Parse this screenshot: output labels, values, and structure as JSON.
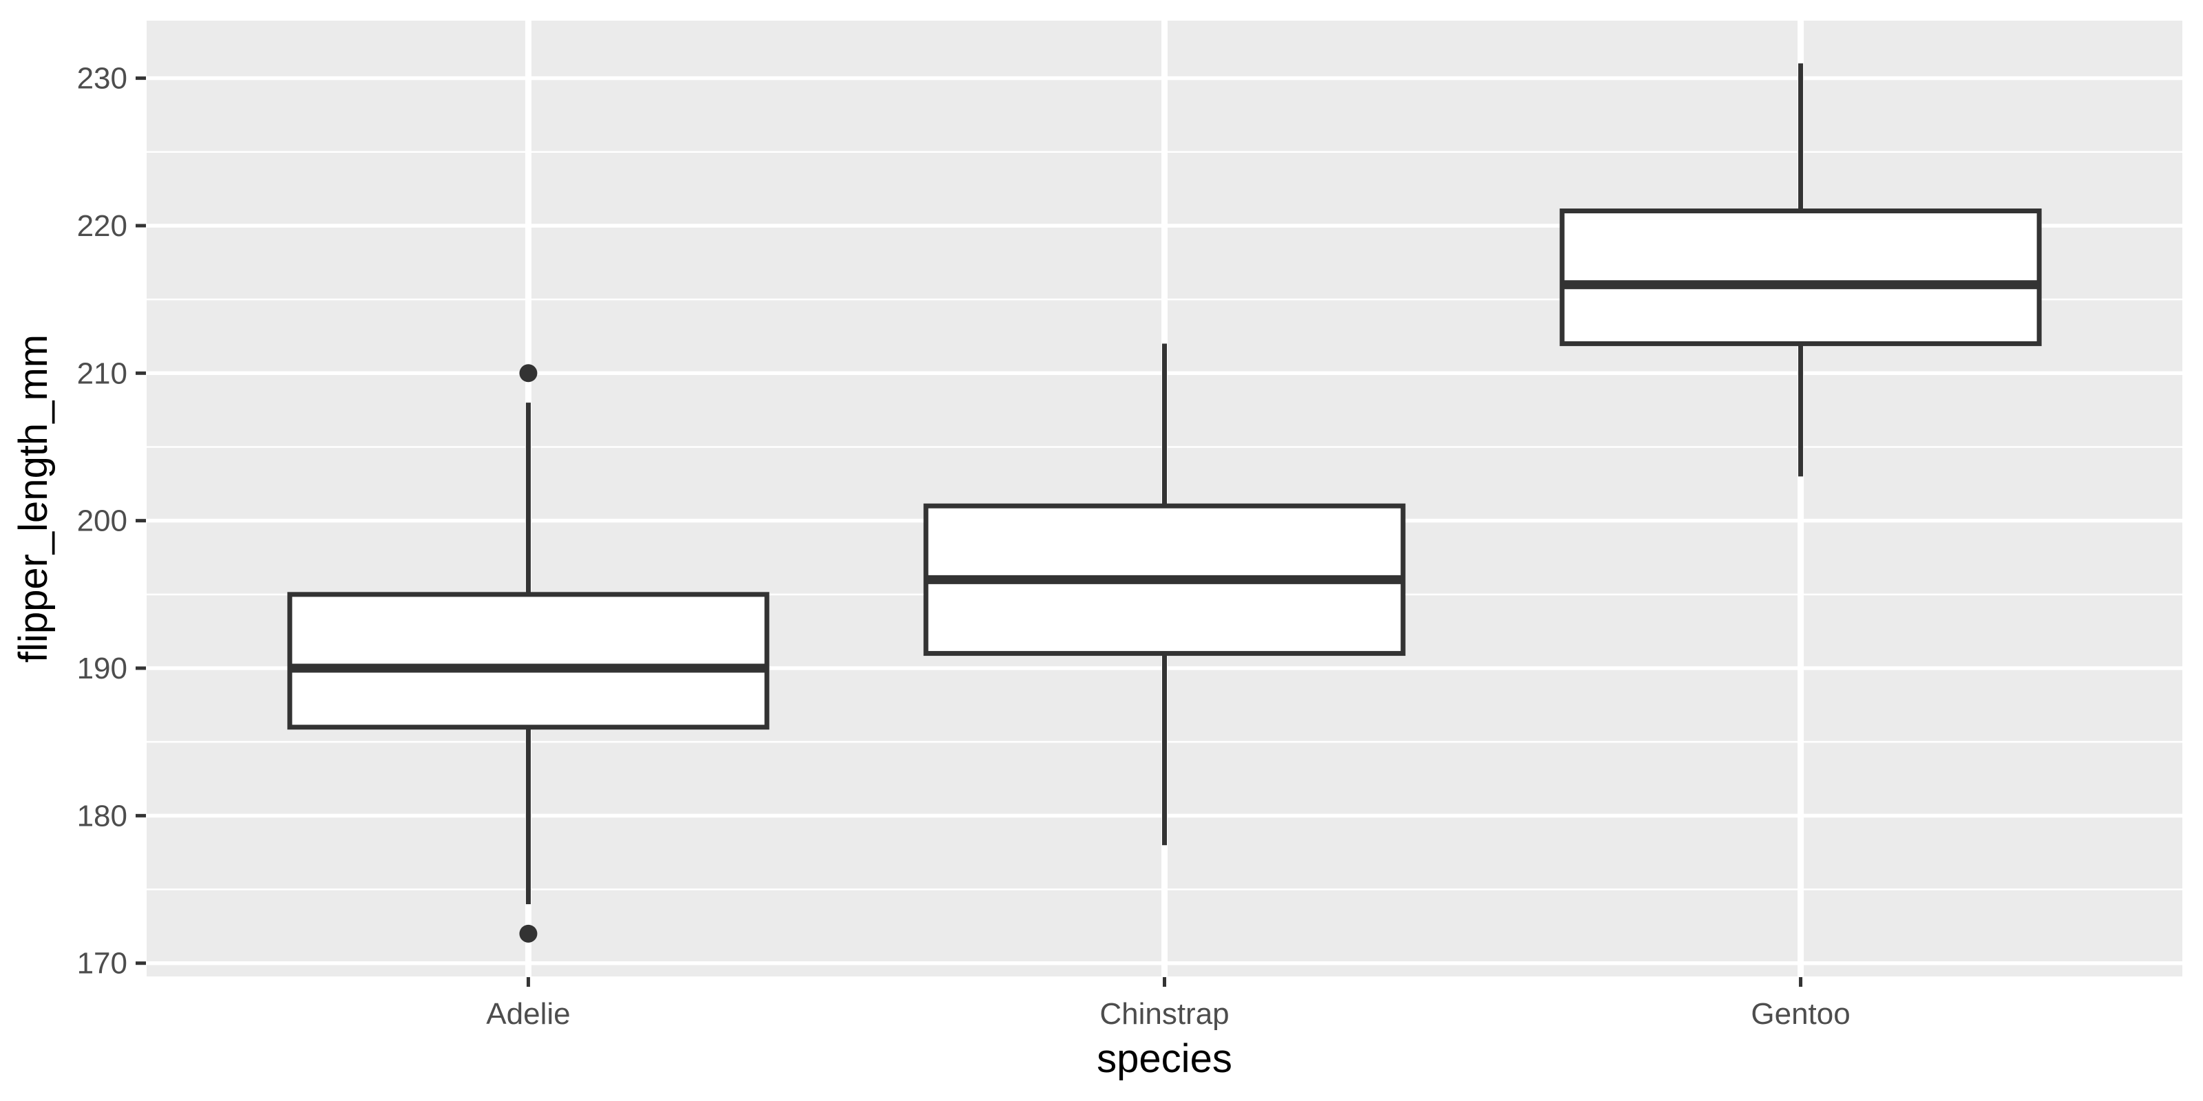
{
  "figure": {
    "kind": "boxplot-figure",
    "background_color": "#FFFFFF"
  },
  "theme": {
    "panel_bg": "#EBEBEB",
    "grid_color": "#FFFFFF",
    "box_stroke": "#333333",
    "box_fill": "#FFFFFF",
    "outlier_color": "#333333",
    "tick_mark_color": "#333333",
    "tick_label_color": "#4D4D4D",
    "axis_title_color": "#000000"
  },
  "chart_data": {
    "type": "boxplot",
    "title": "",
    "xlabel": "species",
    "ylabel": "flipper_length_mm",
    "categories": [
      "Adelie",
      "Chinstrap",
      "Gentoo"
    ],
    "series": [
      {
        "name": "Adelie",
        "whisker_low": 174,
        "q1": 186,
        "median": 190,
        "q3": 195,
        "whisker_high": 208,
        "outliers": [
          172,
          210
        ]
      },
      {
        "name": "Chinstrap",
        "whisker_low": 178,
        "q1": 191,
        "median": 196,
        "q3": 201,
        "whisker_high": 212,
        "outliers": []
      },
      {
        "name": "Gentoo",
        "whisker_low": 203,
        "q1": 212,
        "median": 216,
        "q3": 221,
        "whisker_high": 231,
        "outliers": []
      }
    ],
    "y_ticks": [
      170,
      180,
      190,
      200,
      210,
      220,
      230
    ],
    "ylim": [
      169.1,
      233.9
    ],
    "grid": true,
    "minor_grid": true,
    "legend_position": "none"
  }
}
